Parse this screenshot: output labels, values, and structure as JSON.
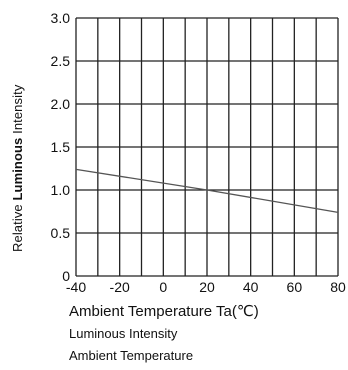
{
  "chart_data": {
    "type": "line",
    "xlabel": "Ambient Temperature Ta(℃)",
    "ylabel_prefix": "Relative ",
    "ylabel_bold": "Luminous",
    "ylabel_suffix": " Intensity",
    "xlim": [
      -40,
      80
    ],
    "ylim": [
      0,
      3.0
    ],
    "x_ticks": [
      "-40",
      "-20",
      "0",
      "20",
      "40",
      "60",
      "80"
    ],
    "y_ticks": [
      "0",
      "0.5",
      "1.0",
      "1.5",
      "2.0",
      "2.5",
      "3.0"
    ],
    "grid": true,
    "series": [
      {
        "x": [
          -40,
          20,
          80
        ],
        "y": [
          1.24,
          1.0,
          0.74
        ],
        "color": "#555555"
      }
    ]
  },
  "captions": {
    "line1": "Luminous Intensity",
    "line2": "Ambient Temperature"
  }
}
